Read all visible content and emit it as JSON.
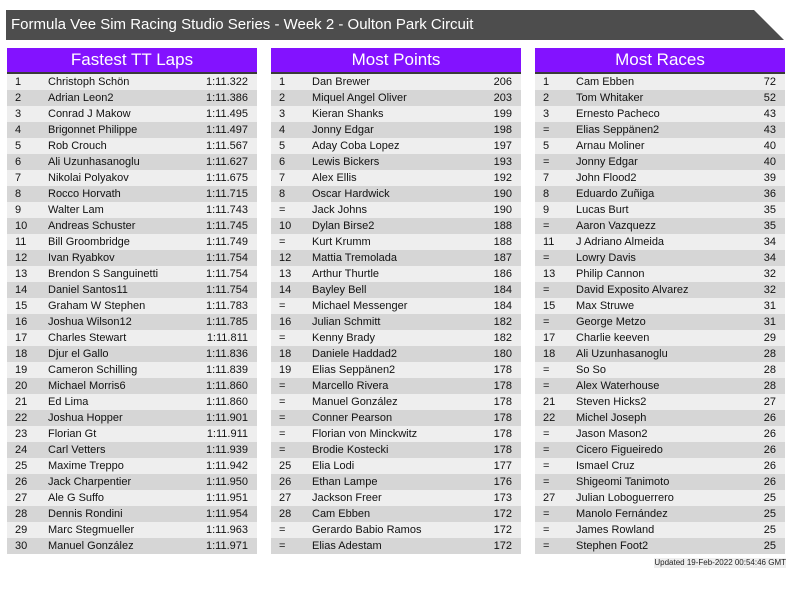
{
  "title": "Formula Vee Sim Racing Studio Series - Week 2 - Oulton Park Circuit",
  "colors": {
    "header": "#8312ff",
    "title_bar": "#4d4d4d",
    "row_light": "#eeeeee",
    "row_dark": "#d6d6d6"
  },
  "panels": [
    {
      "title": "Fastest TT Laps",
      "rows": [
        [
          "1",
          "Christoph Schön",
          "1:11.322"
        ],
        [
          "2",
          "Adrian Leon2",
          "1:11.386"
        ],
        [
          "3",
          "Conrad J Makow",
          "1:11.495"
        ],
        [
          "4",
          "Brigonnet Philippe",
          "1:11.497"
        ],
        [
          "5",
          "Rob Crouch",
          "1:11.567"
        ],
        [
          "6",
          "Ali Uzunhasanoglu",
          "1:11.627"
        ],
        [
          "7",
          "Nikolai Polyakov",
          "1:11.675"
        ],
        [
          "8",
          "Rocco Horvath",
          "1:11.715"
        ],
        [
          "9",
          "Walter Lam",
          "1:11.743"
        ],
        [
          "10",
          "Andreas Schuster",
          "1:11.745"
        ],
        [
          "11",
          "Bill Groombridge",
          "1:11.749"
        ],
        [
          "12",
          "Ivan Ryabkov",
          "1:11.754"
        ],
        [
          "13",
          "Brendon S Sanguinetti",
          "1:11.754"
        ],
        [
          "14",
          "Daniel Santos11",
          "1:11.754"
        ],
        [
          "15",
          "Graham W Stephen",
          "1:11.783"
        ],
        [
          "16",
          "Joshua Wilson12",
          "1:11.785"
        ],
        [
          "17",
          "Charles Stewart",
          "1:11.811"
        ],
        [
          "18",
          "Djur el Gallo",
          "1:11.836"
        ],
        [
          "19",
          "Cameron Schilling",
          "1:11.839"
        ],
        [
          "20",
          "Michael Morris6",
          "1:11.860"
        ],
        [
          "21",
          "Ed Lima",
          "1:11.860"
        ],
        [
          "22",
          "Joshua Hopper",
          "1:11.901"
        ],
        [
          "23",
          "Florian Gt",
          "1:11.911"
        ],
        [
          "24",
          "Carl Vetters",
          "1:11.939"
        ],
        [
          "25",
          "Maxime Treppo",
          "1:11.942"
        ],
        [
          "26",
          "Jack Charpentier",
          "1:11.950"
        ],
        [
          "27",
          "Ale G Suffo",
          "1:11.951"
        ],
        [
          "28",
          "Dennis Rondini",
          "1:11.954"
        ],
        [
          "29",
          "Marc Stegmueller",
          "1:11.963"
        ],
        [
          "30",
          "Manuel González",
          "1:11.971"
        ]
      ]
    },
    {
      "title": "Most Points",
      "rows": [
        [
          "1",
          "Dan Brewer",
          "206"
        ],
        [
          "2",
          "Miquel Angel Oliver",
          "203"
        ],
        [
          "3",
          "Kieran Shanks",
          "199"
        ],
        [
          "4",
          "Jonny Edgar",
          "198"
        ],
        [
          "5",
          "Aday Coba Lopez",
          "197"
        ],
        [
          "6",
          "Lewis Bickers",
          "193"
        ],
        [
          "7",
          "Alex Ellis",
          "192"
        ],
        [
          "8",
          "Oscar Hardwick",
          "190"
        ],
        [
          "=",
          "Jack Johns",
          "190"
        ],
        [
          "10",
          "Dylan Birse2",
          "188"
        ],
        [
          "=",
          "Kurt Krumm",
          "188"
        ],
        [
          "12",
          "Mattia Tremolada",
          "187"
        ],
        [
          "13",
          "Arthur Thurtle",
          "186"
        ],
        [
          "14",
          "Bayley Bell",
          "184"
        ],
        [
          "=",
          "Michael Messenger",
          "184"
        ],
        [
          "16",
          "Julian Schmitt",
          "182"
        ],
        [
          "=",
          "Kenny Brady",
          "182"
        ],
        [
          "18",
          "Daniele Haddad2",
          "180"
        ],
        [
          "19",
          "Elias Seppänen2",
          "178"
        ],
        [
          "=",
          "Marcello Rivera",
          "178"
        ],
        [
          "=",
          "Manuel González",
          "178"
        ],
        [
          "=",
          "Conner Pearson",
          "178"
        ],
        [
          "=",
          "Florian von Minckwitz",
          "178"
        ],
        [
          "=",
          "Brodie Kostecki",
          "178"
        ],
        [
          "25",
          "Elia Lodi",
          "177"
        ],
        [
          "26",
          "Ethan Lampe",
          "176"
        ],
        [
          "27",
          "Jackson Freer",
          "173"
        ],
        [
          "28",
          "Cam Ebben",
          "172"
        ],
        [
          "=",
          "Gerardo Babio Ramos",
          "172"
        ],
        [
          "=",
          "Elias Adestam",
          "172"
        ]
      ]
    },
    {
      "title": "Most Races",
      "rows": [
        [
          "1",
          "Cam Ebben",
          "72"
        ],
        [
          "2",
          "Tom Whitaker",
          "52"
        ],
        [
          "3",
          "Ernesto Pacheco",
          "43"
        ],
        [
          "=",
          "Elias Seppänen2",
          "43"
        ],
        [
          "5",
          "Arnau Moliner",
          "40"
        ],
        [
          "=",
          "Jonny Edgar",
          "40"
        ],
        [
          "7",
          "John Flood2",
          "39"
        ],
        [
          "8",
          "Eduardo Zuñiga",
          "36"
        ],
        [
          "9",
          "Lucas Burt",
          "35"
        ],
        [
          "=",
          "Aaron Vazquezz",
          "35"
        ],
        [
          "11",
          "J Adriano Almeida",
          "34"
        ],
        [
          "=",
          "Lowry Davis",
          "34"
        ],
        [
          "13",
          "Philip Cannon",
          "32"
        ],
        [
          "=",
          "David Exposito Alvarez",
          "32"
        ],
        [
          "15",
          "Max Struwe",
          "31"
        ],
        [
          "=",
          "George Metzo",
          "31"
        ],
        [
          "17",
          "Charlie keeven",
          "29"
        ],
        [
          "18",
          "Ali Uzunhasanoglu",
          "28"
        ],
        [
          "=",
          "So So",
          "28"
        ],
        [
          "=",
          "Alex Waterhouse",
          "28"
        ],
        [
          "21",
          "Steven Hicks2",
          "27"
        ],
        [
          "22",
          "Michel Joseph",
          "26"
        ],
        [
          "=",
          "Jason Mason2",
          "26"
        ],
        [
          "=",
          "Cicero Figueiredo",
          "26"
        ],
        [
          "=",
          "Ismael Cruz",
          "26"
        ],
        [
          "=",
          "Shigeomi Tanimoto",
          "26"
        ],
        [
          "27",
          "Julian Loboguerrero",
          "25"
        ],
        [
          "=",
          "Manolo Fernández",
          "25"
        ],
        [
          "=",
          "James Rowland",
          "25"
        ],
        [
          "=",
          "Stephen Foot2",
          "25"
        ]
      ]
    }
  ],
  "updated": "Updated 19-Feb-2022 00:54:46 GMT"
}
